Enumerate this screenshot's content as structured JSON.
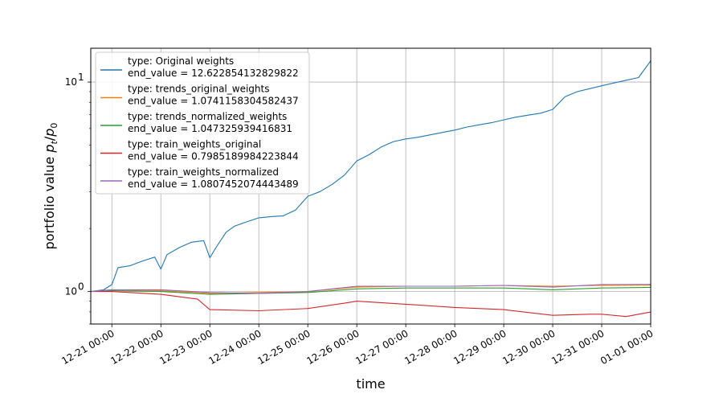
{
  "chart_data": {
    "type": "line",
    "xlabel": "time",
    "ylabel": "portfolio value p_t/p_0",
    "yscale": "log",
    "ylim": [
      0.7,
      14.5
    ],
    "xlim": [
      "2021-12-20 13:40",
      "2022-01-01 00:00"
    ],
    "grid": true,
    "legend_placement": "upper-left",
    "xticks": [
      {
        "x": "2021-12-21 00:00",
        "label": "12-21 00:00"
      },
      {
        "x": "2021-12-22 00:00",
        "label": "12-22 00:00"
      },
      {
        "x": "2021-12-23 00:00",
        "label": "12-23 00:00"
      },
      {
        "x": "2021-12-24 00:00",
        "label": "12-24 00:00"
      },
      {
        "x": "2021-12-25 00:00",
        "label": "12-25 00:00"
      },
      {
        "x": "2021-12-26 00:00",
        "label": "12-26 00:00"
      },
      {
        "x": "2021-12-27 00:00",
        "label": "12-27 00:00"
      },
      {
        "x": "2021-12-28 00:00",
        "label": "12-28 00:00"
      },
      {
        "x": "2021-12-29 00:00",
        "label": "12-29 00:00"
      },
      {
        "x": "2021-12-30 00:00",
        "label": "12-30 00:00"
      },
      {
        "x": "2021-12-31 00:00",
        "label": "12-31 00:00"
      },
      {
        "x": "2022-01-01 00:00",
        "label": "01-01 00:00"
      }
    ],
    "yticks": [
      {
        "value": 1,
        "label": "10",
        "exp": "0"
      },
      {
        "value": 10,
        "label": "10",
        "exp": "1"
      }
    ],
    "series": [
      {
        "name": "type: Original weights",
        "end_label": "end_value = 12.622854132829822",
        "color": "#1f77b4",
        "points": [
          [
            "2021-12-20 13:40",
            1.0
          ],
          [
            "2021-12-20 20:00",
            1.02
          ],
          [
            "2021-12-21 00:00",
            1.08
          ],
          [
            "2021-12-21 03:00",
            1.3
          ],
          [
            "2021-12-21 09:00",
            1.33
          ],
          [
            "2021-12-21 15:00",
            1.4
          ],
          [
            "2021-12-21 21:00",
            1.46
          ],
          [
            "2021-12-22 00:00",
            1.28
          ],
          [
            "2021-12-22 03:00",
            1.5
          ],
          [
            "2021-12-22 09:00",
            1.62
          ],
          [
            "2021-12-22 15:00",
            1.72
          ],
          [
            "2021-12-22 21:00",
            1.75
          ],
          [
            "2021-12-23 00:00",
            1.45
          ],
          [
            "2021-12-23 03:00",
            1.62
          ],
          [
            "2021-12-23 08:00",
            1.92
          ],
          [
            "2021-12-23 12:00",
            2.05
          ],
          [
            "2021-12-23 18:00",
            2.15
          ],
          [
            "2021-12-24 00:00",
            2.25
          ],
          [
            "2021-12-24 06:00",
            2.28
          ],
          [
            "2021-12-24 12:00",
            2.3
          ],
          [
            "2021-12-24 18:00",
            2.45
          ],
          [
            "2021-12-25 00:00",
            2.85
          ],
          [
            "2021-12-25 06:00",
            3.0
          ],
          [
            "2021-12-25 12:00",
            3.25
          ],
          [
            "2021-12-25 18:00",
            3.6
          ],
          [
            "2021-12-26 00:00",
            4.2
          ],
          [
            "2021-12-26 06:00",
            4.5
          ],
          [
            "2021-12-26 12:00",
            4.9
          ],
          [
            "2021-12-26 18:00",
            5.2
          ],
          [
            "2021-12-27 00:00",
            5.35
          ],
          [
            "2021-12-27 06:00",
            5.45
          ],
          [
            "2021-12-27 12:00",
            5.6
          ],
          [
            "2021-12-27 18:00",
            5.75
          ],
          [
            "2021-12-28 00:00",
            5.9
          ],
          [
            "2021-12-28 06:00",
            6.1
          ],
          [
            "2021-12-28 12:00",
            6.25
          ],
          [
            "2021-12-28 18:00",
            6.4
          ],
          [
            "2021-12-29 00:00",
            6.6
          ],
          [
            "2021-12-29 06:00",
            6.8
          ],
          [
            "2021-12-29 12:00",
            6.95
          ],
          [
            "2021-12-29 18:00",
            7.1
          ],
          [
            "2021-12-30 00:00",
            7.4
          ],
          [
            "2021-12-30 06:00",
            8.5
          ],
          [
            "2021-12-30 12:00",
            9.0
          ],
          [
            "2021-12-30 18:00",
            9.3
          ],
          [
            "2021-12-31 00:00",
            9.6
          ],
          [
            "2021-12-31 06:00",
            9.9
          ],
          [
            "2021-12-31 12:00",
            10.2
          ],
          [
            "2021-12-31 18:00",
            10.5
          ],
          [
            "2022-01-01 00:00",
            12.62
          ]
        ]
      },
      {
        "name": "type: trends_original_weights",
        "end_label": "end_value = 1.0741158304582437",
        "color": "#ff7f0e",
        "points": [
          [
            "2021-12-20 13:40",
            1.0
          ],
          [
            "2021-12-21 00:00",
            1.02
          ],
          [
            "2021-12-22 00:00",
            1.01
          ],
          [
            "2021-12-23 00:00",
            0.98
          ],
          [
            "2021-12-24 00:00",
            0.99
          ],
          [
            "2021-12-25 00:00",
            1.0
          ],
          [
            "2021-12-26 00:00",
            1.05
          ],
          [
            "2021-12-27 00:00",
            1.06
          ],
          [
            "2021-12-28 00:00",
            1.06
          ],
          [
            "2021-12-29 00:00",
            1.07
          ],
          [
            "2021-12-30 00:00",
            1.06
          ],
          [
            "2021-12-31 00:00",
            1.07
          ],
          [
            "2022-01-01 00:00",
            1.074
          ]
        ]
      },
      {
        "name": "type: trends_normalized_weights",
        "end_label": "end_value = 1.047325939416831",
        "color": "#2ca02c",
        "points": [
          [
            "2021-12-20 13:40",
            1.0
          ],
          [
            "2021-12-21 00:00",
            1.01
          ],
          [
            "2021-12-22 00:00",
            1.0
          ],
          [
            "2021-12-23 00:00",
            0.97
          ],
          [
            "2021-12-24 00:00",
            0.98
          ],
          [
            "2021-12-25 00:00",
            0.99
          ],
          [
            "2021-12-26 00:00",
            1.03
          ],
          [
            "2021-12-27 00:00",
            1.04
          ],
          [
            "2021-12-28 00:00",
            1.04
          ],
          [
            "2021-12-29 00:00",
            1.04
          ],
          [
            "2021-12-30 00:00",
            1.02
          ],
          [
            "2021-12-31 00:00",
            1.04
          ],
          [
            "2022-01-01 00:00",
            1.047
          ]
        ]
      },
      {
        "name": "type: train_weights_original",
        "end_label": "end_value = 0.7985189984223844",
        "color": "#d62728",
        "points": [
          [
            "2021-12-20 13:40",
            1.0
          ],
          [
            "2021-12-21 00:00",
            1.0
          ],
          [
            "2021-12-22 00:00",
            0.97
          ],
          [
            "2021-12-22 18:00",
            0.92
          ],
          [
            "2021-12-23 00:00",
            0.82
          ],
          [
            "2021-12-24 00:00",
            0.81
          ],
          [
            "2021-12-25 00:00",
            0.83
          ],
          [
            "2021-12-25 18:00",
            0.88
          ],
          [
            "2021-12-26 00:00",
            0.9
          ],
          [
            "2021-12-27 00:00",
            0.87
          ],
          [
            "2021-12-28 00:00",
            0.84
          ],
          [
            "2021-12-29 00:00",
            0.82
          ],
          [
            "2021-12-30 00:00",
            0.77
          ],
          [
            "2021-12-30 18:00",
            0.78
          ],
          [
            "2021-12-31 00:00",
            0.78
          ],
          [
            "2021-12-31 12:00",
            0.76
          ],
          [
            "2022-01-01 00:00",
            0.7985
          ]
        ]
      },
      {
        "name": "type: train_weights_normalized",
        "end_label": "end_value = 1.0807452074443489",
        "color": "#9467bd",
        "points": [
          [
            "2021-12-20 13:40",
            1.0
          ],
          [
            "2021-12-21 00:00",
            1.02
          ],
          [
            "2021-12-22 00:00",
            1.02
          ],
          [
            "2021-12-23 00:00",
            0.99
          ],
          [
            "2021-12-24 00:00",
            0.98
          ],
          [
            "2021-12-25 00:00",
            1.0
          ],
          [
            "2021-12-26 00:00",
            1.06
          ],
          [
            "2021-12-27 00:00",
            1.06
          ],
          [
            "2021-12-28 00:00",
            1.06
          ],
          [
            "2021-12-29 00:00",
            1.07
          ],
          [
            "2021-12-30 00:00",
            1.05
          ],
          [
            "2021-12-31 00:00",
            1.08
          ],
          [
            "2022-01-01 00:00",
            1.081
          ]
        ]
      }
    ]
  }
}
